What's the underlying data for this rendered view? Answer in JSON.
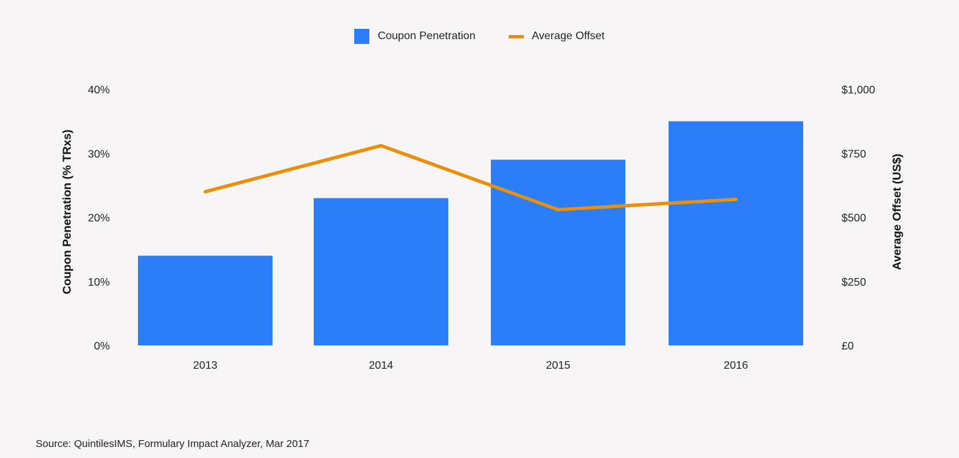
{
  "chart_data": {
    "type": "bar",
    "categories": [
      "2013",
      "2014",
      "2015",
      "2016"
    ],
    "series": [
      {
        "name": "Coupon Penetration",
        "type": "bar",
        "axis": "left",
        "values": [
          14,
          23,
          29,
          35
        ],
        "color": "#2b7df8"
      },
      {
        "name": "Average Offset",
        "type": "line",
        "axis": "right",
        "values": [
          600,
          780,
          530,
          570
        ],
        "color": "#e8900c"
      }
    ],
    "ylabel": "Coupon Penetration (% TRxs)",
    "y2label": "Average Offset (US$)",
    "ylim": [
      0,
      40
    ],
    "y2lim": [
      0,
      1000
    ],
    "yticks": [
      "0%",
      "10%",
      "20%",
      "30%",
      "40%"
    ],
    "y2ticks": [
      "£0",
      "$250",
      "$500",
      "$750",
      "$1,000"
    ],
    "legend_position": "top-center",
    "grid": false
  },
  "legend": {
    "bar_label": "Coupon Penetration",
    "line_label": "Average Offset"
  },
  "source": "Source: QuintilesIMS, Formulary Impact Analyzer, Mar 2017"
}
